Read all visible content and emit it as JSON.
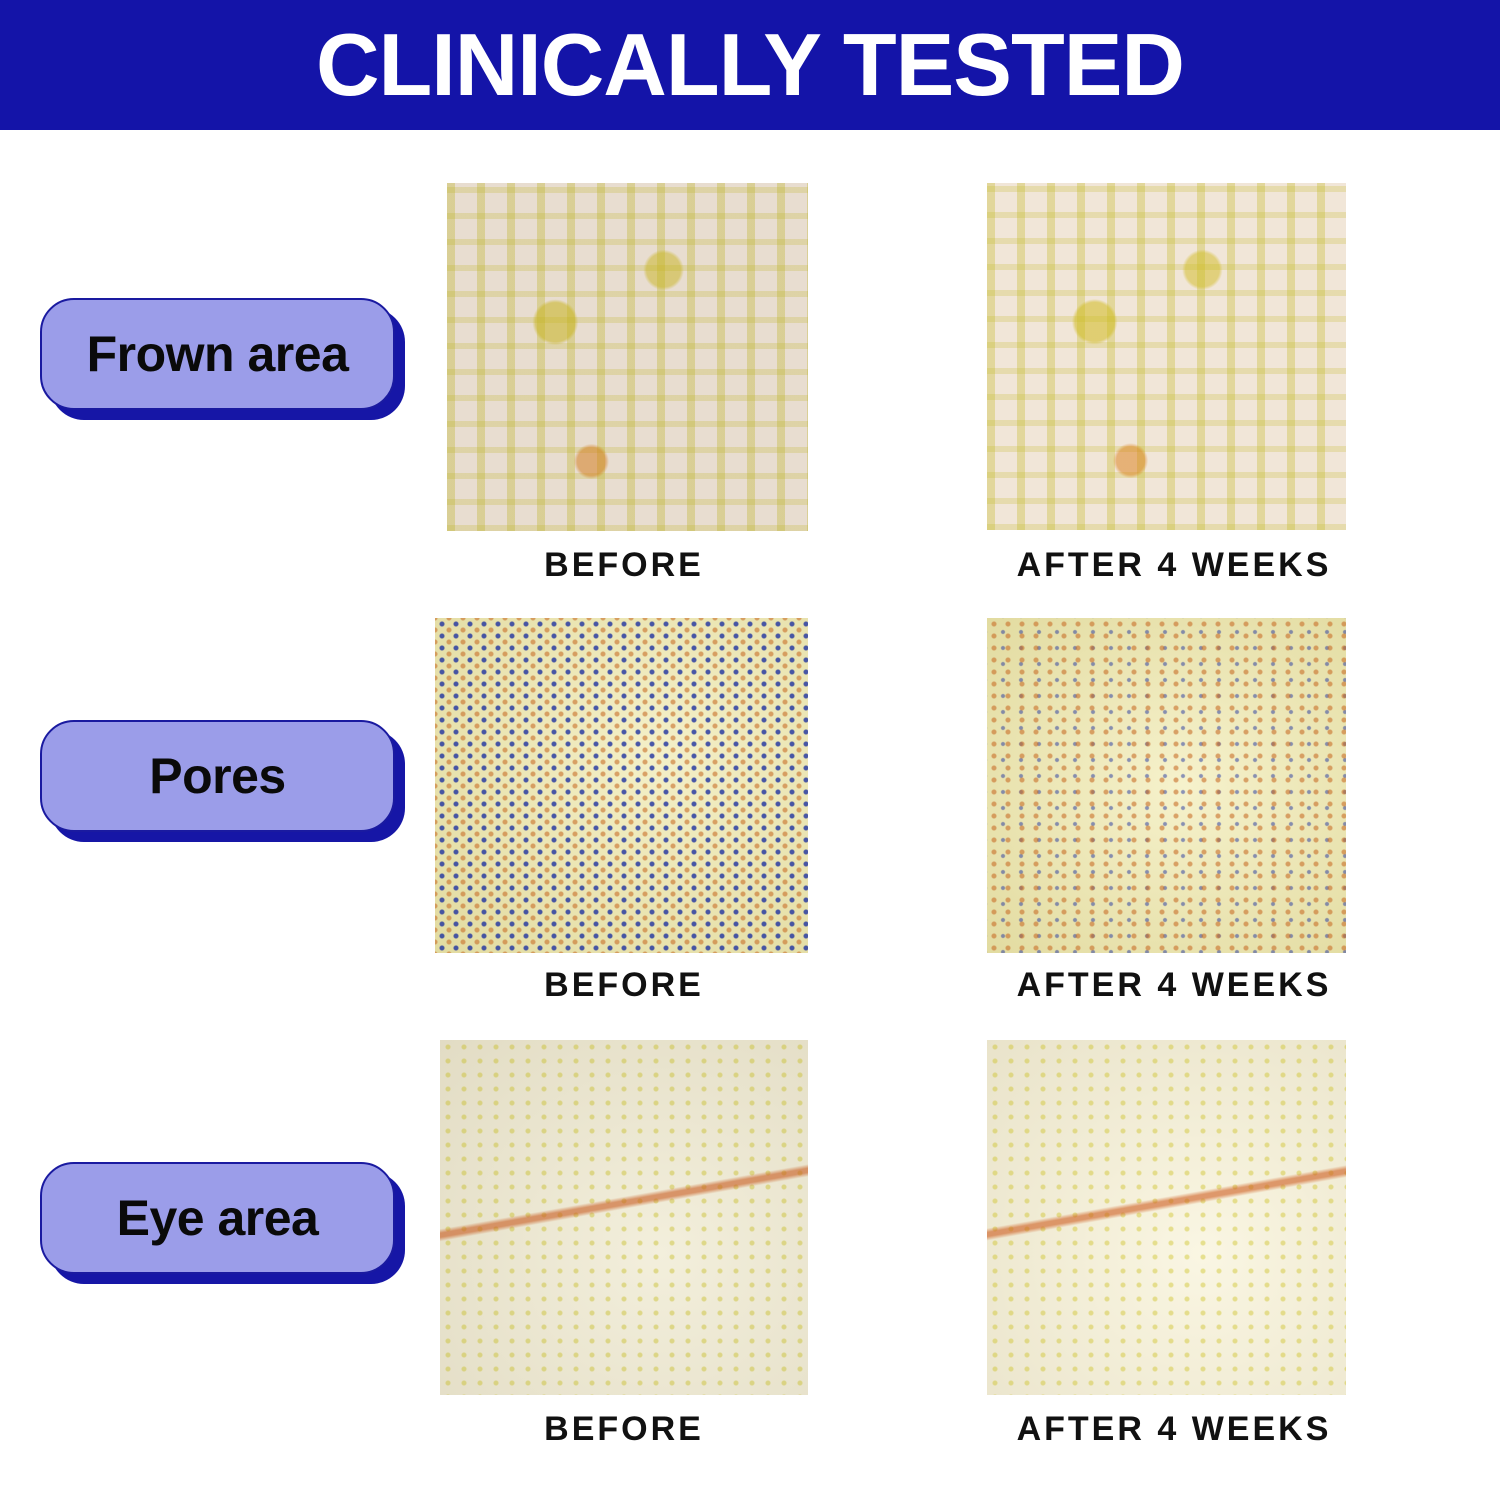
{
  "title": "CLINICALLY TESTED",
  "colors": {
    "banner": "#1414a8",
    "pill_fill": "#9b9de9",
    "pill_shadow": "#1616a6"
  },
  "rows": [
    {
      "label": "Frown area",
      "before_caption": "BEFORE",
      "after_caption": "AFTER 4 WEEKS"
    },
    {
      "label": "Pores",
      "before_caption": "BEFORE",
      "after_caption": "AFTER 4 WEEKS"
    },
    {
      "label": "Eye area",
      "before_caption": "BEFORE",
      "after_caption": "AFTER 4 WEEKS"
    }
  ]
}
